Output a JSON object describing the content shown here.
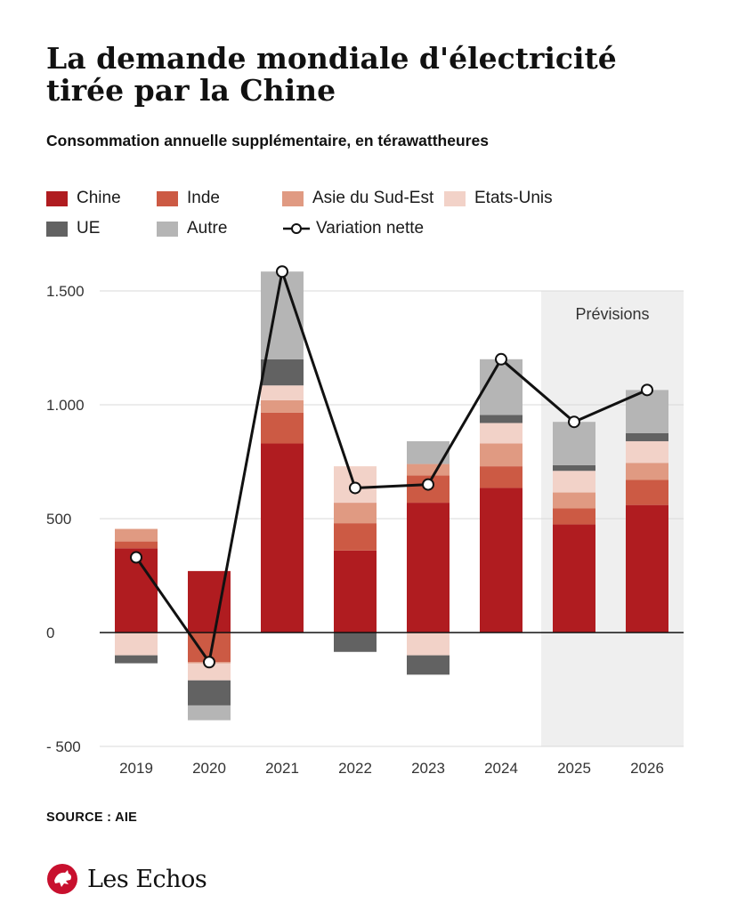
{
  "header": {
    "title": "La demande mondiale d'électricité tirée par la Chine",
    "subtitle": "Consommation annuelle supplémentaire, en térawattheures"
  },
  "legend": {
    "chine": "Chine",
    "inde": "Inde",
    "asie": "Asie du Sud-Est",
    "etats_unis": "Etats-Unis",
    "ue": "UE",
    "autre": "Autre",
    "variation": "Variation nette"
  },
  "colors": {
    "chine": "#b01c20",
    "inde": "#cc5a44",
    "asie": "#e09a82",
    "etats_unis": "#f2d2c8",
    "ue": "#626262",
    "autre": "#b5b5b5",
    "line": "#111111",
    "forecast_bg": "#efefef",
    "grid": "#d9d9d9"
  },
  "chart_data": {
    "type": "bar",
    "stacked": true,
    "categories": [
      "2019",
      "2020",
      "2021",
      "2022",
      "2023",
      "2024",
      "2025",
      "2026"
    ],
    "series": [
      {
        "name": "Chine",
        "key": "chine",
        "values": [
          370,
          270,
          830,
          360,
          570,
          635,
          475,
          560
        ]
      },
      {
        "name": "Inde",
        "key": "inde",
        "values": [
          30,
          -130,
          135,
          120,
          120,
          95,
          70,
          110
        ]
      },
      {
        "name": "Asie du Sud-Est",
        "key": "asie",
        "values": [
          55,
          -5,
          55,
          90,
          50,
          100,
          70,
          75
        ]
      },
      {
        "name": "Etats-Unis",
        "key": "etats_unis",
        "values": [
          -100,
          -75,
          65,
          160,
          -100,
          90,
          95,
          95
        ]
      },
      {
        "name": "UE",
        "key": "ue",
        "values": [
          -35,
          -110,
          115,
          -85,
          -85,
          35,
          25,
          35
        ]
      },
      {
        "name": "Autre",
        "key": "autre",
        "values": [
          0,
          -65,
          385,
          0,
          100,
          245,
          190,
          190
        ]
      }
    ],
    "net_variation": {
      "name": "Variation nette",
      "values": [
        330,
        -130,
        1585,
        635,
        650,
        1200,
        925,
        1065
      ]
    },
    "y_ticks": [
      {
        "value": 1500,
        "label": "1.500"
      },
      {
        "value": 1000,
        "label": "1.000"
      },
      {
        "value": 500,
        "label": "500"
      },
      {
        "value": 0,
        "label": "0"
      },
      {
        "value": -500,
        "label": "- 500"
      }
    ],
    "ylim": [
      -500,
      1500
    ],
    "forecast_label": "Prévisions",
    "forecast_categories": [
      "2025",
      "2026"
    ],
    "grid": true
  },
  "footer": {
    "source": "SOURCE : AIE",
    "brand": "Les Echos"
  }
}
